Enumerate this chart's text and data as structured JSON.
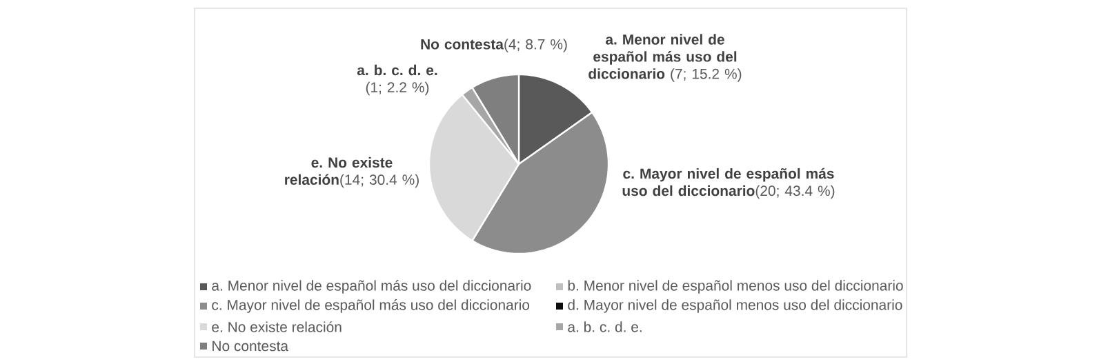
{
  "chart_data": {
    "type": "pie",
    "categories": [
      "a. Menor nivel de español más uso del diccionario",
      "b. Menor nivel de español menos uso del diccionario",
      "c. Mayor nivel de español más uso del diccionario",
      "d. Mayor nivel de español menos uso del diccionario",
      "e. No existe relación",
      "a. b. c. d. e.",
      "No contesta"
    ],
    "values": [
      7,
      0,
      20,
      0,
      14,
      1,
      4
    ],
    "value_labels": [
      "(7; 15.2 %)",
      null,
      "(20; 43.4 %)",
      null,
      "(14; 30.4 %)",
      "(1; 2.2 %)",
      "(4; 8.7 %)"
    ],
    "colors": [
      "#595959",
      "#bfbfbf",
      "#8c8c8c",
      "#0d0d0d",
      "#d9d9d9",
      "#a6a6a6",
      "#7f7f7f"
    ],
    "legend": "bottom"
  }
}
